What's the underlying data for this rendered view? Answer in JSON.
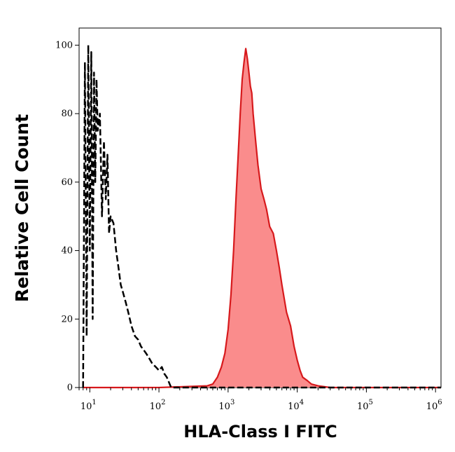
{
  "chart_data": {
    "type": "area",
    "title": "",
    "xlabel": "HLA-Class I FITC",
    "ylabel": "Relative Cell Count",
    "x_scale": "log",
    "xlim": [
      7,
      1200000
    ],
    "ylim": [
      0,
      105
    ],
    "x_ticks": [
      {
        "value": 10,
        "base": "10",
        "exp": "1"
      },
      {
        "value": 100,
        "base": "10",
        "exp": "2"
      },
      {
        "value": 1000,
        "base": "10",
        "exp": "3"
      },
      {
        "value": 10000,
        "base": "10",
        "exp": "4"
      },
      {
        "value": 100000,
        "base": "10",
        "exp": "5"
      },
      {
        "value": 1000000,
        "base": "10",
        "exp": "6"
      }
    ],
    "y_ticks": [
      0,
      20,
      40,
      60,
      80,
      100
    ],
    "grid": false,
    "series": [
      {
        "style": "filled",
        "color": "#d7191c",
        "fill": "#fa8c8c",
        "x": [
          8,
          100,
          500,
          600,
          700,
          800,
          900,
          1000,
          1100,
          1200,
          1300,
          1400,
          1500,
          1600,
          1700,
          1800,
          1900,
          2000,
          2100,
          2200,
          2300,
          2500,
          2700,
          3000,
          3300,
          3600,
          4000,
          4500,
          5000,
          5500,
          6000,
          7000,
          8000,
          9000,
          10000,
          11000,
          12000,
          14000,
          16000,
          20000,
          30000,
          1200000
        ],
        "y": [
          0,
          0,
          0.5,
          1,
          3,
          6,
          10,
          17,
          27,
          40,
          55,
          68,
          80,
          90,
          95,
          99,
          96,
          92,
          88,
          86,
          80,
          72,
          65,
          58,
          55,
          52,
          47,
          45,
          40,
          35,
          30,
          22,
          18,
          12,
          8,
          5,
          3,
          2,
          1,
          0.5,
          0,
          0
        ]
      },
      {
        "style": "dashed",
        "color": "#000000",
        "x": [
          8,
          8.5,
          9,
          9.5,
          10,
          10.5,
          11,
          11.5,
          12,
          12.5,
          13,
          14,
          15,
          16,
          17,
          18,
          19,
          20,
          22,
          24,
          26,
          28,
          30,
          33,
          36,
          40,
          45,
          50,
          55,
          60,
          65,
          70,
          80,
          90,
          100,
          110,
          120,
          130,
          150,
          200,
          1200000
        ],
        "y": [
          0,
          95,
          15,
          100,
          40,
          98,
          20,
          92,
          60,
          90,
          75,
          80,
          50,
          72,
          55,
          68,
          45,
          50,
          48,
          40,
          35,
          30,
          28,
          25,
          22,
          18,
          15,
          14,
          12,
          11,
          10,
          9,
          7,
          6,
          5,
          6,
          4,
          3,
          0,
          0,
          0
        ]
      }
    ]
  }
}
